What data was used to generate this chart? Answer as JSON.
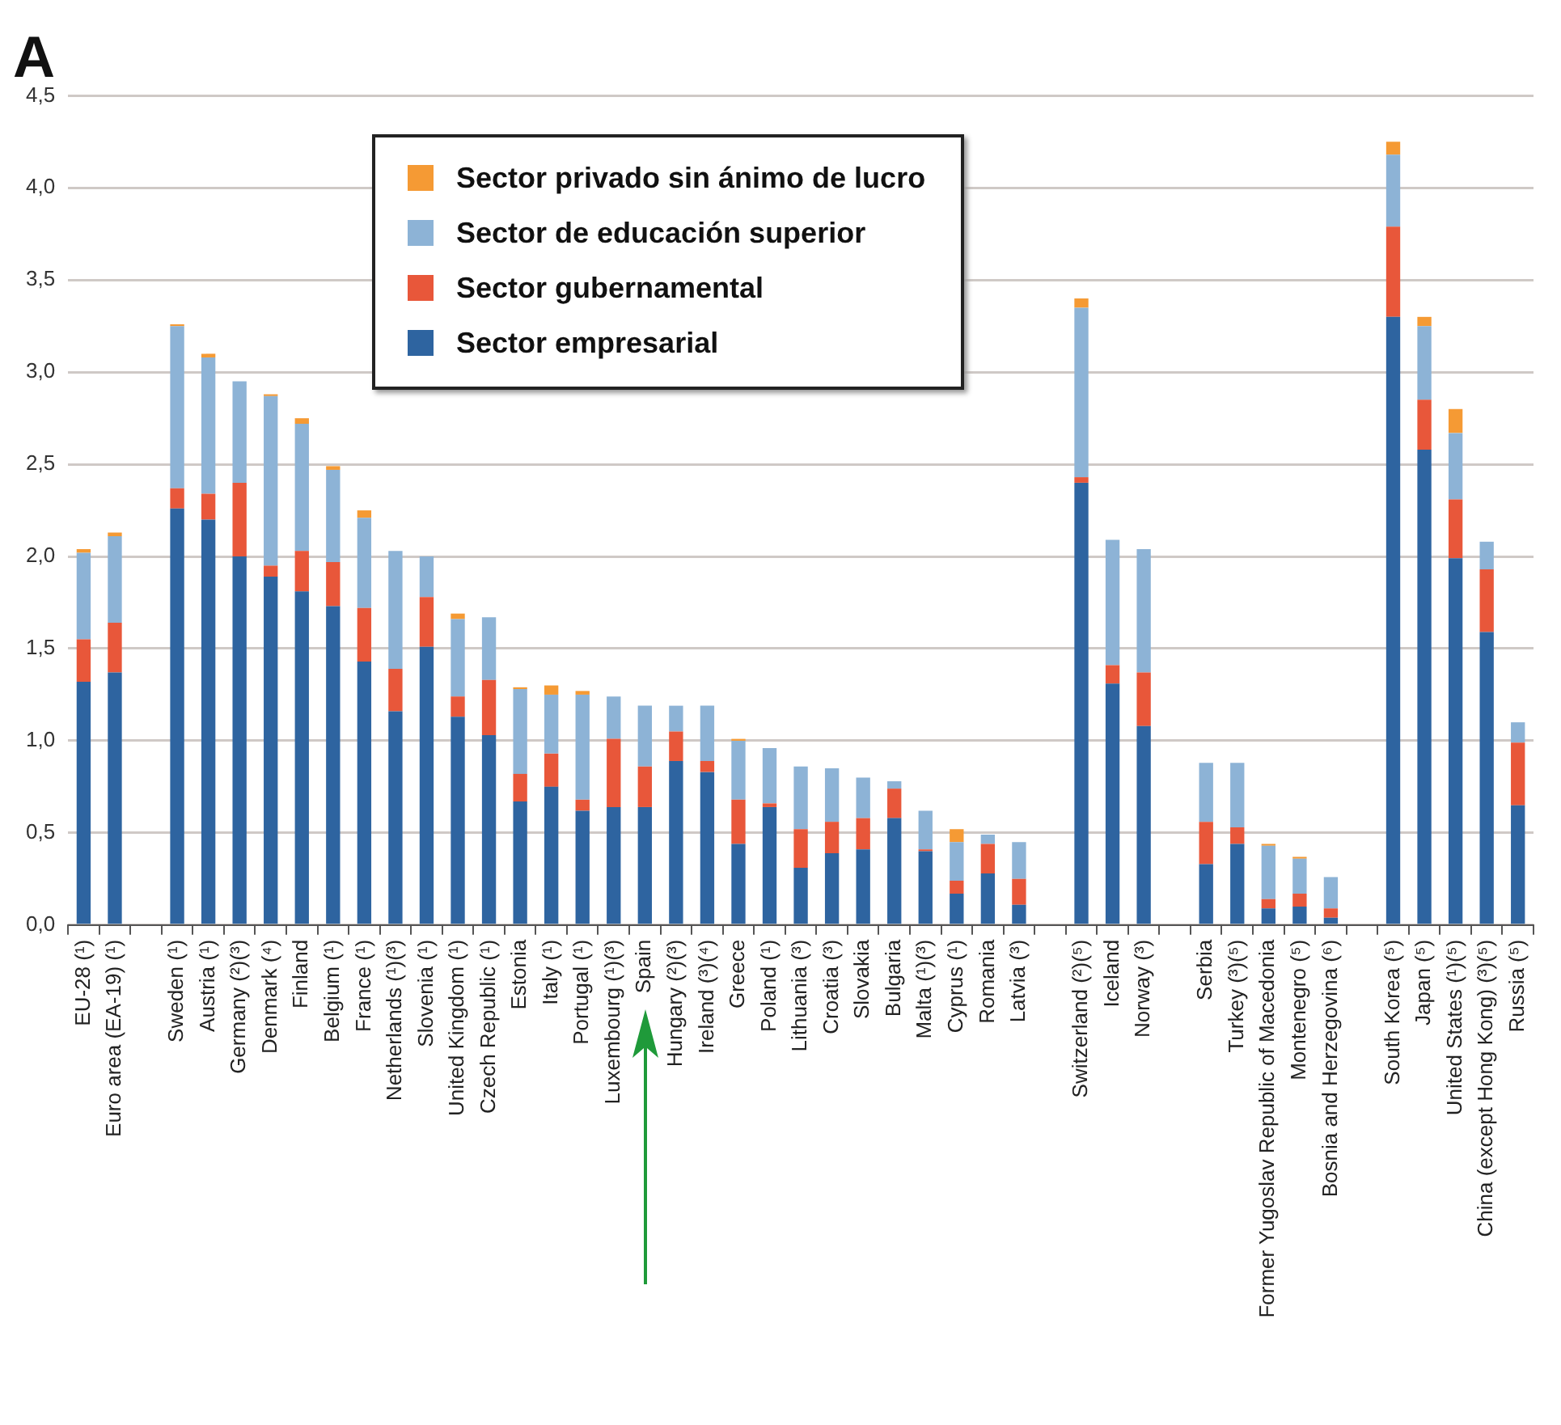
{
  "chart_data": {
    "type": "bar",
    "title": "A",
    "stacked": true,
    "grid": "y",
    "legend": "top",
    "categories": [
      "EU-28 (¹)",
      "Euro area (EA-19) (¹)",
      null,
      "Sweden (¹)",
      "Austria (¹)",
      "Germany (²)(³)",
      "Denmark (⁴)",
      "Finland",
      "Belgium (¹)",
      "France (¹)",
      "Netherlands (¹)(³)",
      "Slovenia (¹)",
      "United Kingdom (¹)",
      "Czech Republic (¹)",
      "Estonia",
      "Italy (¹)",
      "Portugal (¹)",
      "Luxembourg (¹)(³)",
      "Spain",
      "Hungary (²)(³)",
      "Ireland (³)(⁴)",
      "Greece",
      "Poland (¹)",
      "Lithuania (³)",
      "Croatia (³)",
      "Slovakia",
      "Bulgaria",
      "Malta (¹)(³)",
      "Cyprus (¹)",
      "Romania",
      "Latvia (³)",
      null,
      "Switzerland (²)(⁵)",
      "Iceland",
      "Norway (³)",
      null,
      "Serbia",
      "Turkey (³)(⁵)",
      "Former Yugoslav Republic of Macedonia",
      "Montenegro (⁵)",
      "Bosnia and Herzegovina (⁶)",
      null,
      "South Korea (⁵)",
      "Japan (⁵)",
      "United States (¹)(⁵)",
      "China (except Hong Kong) (³)(⁵)",
      "Russia (⁵)"
    ],
    "series": [
      {
        "name": "Sector empresarial",
        "color": "#2e64a0",
        "values": [
          1.32,
          1.37,
          null,
          2.26,
          2.2,
          2.0,
          1.89,
          1.81,
          1.73,
          1.43,
          1.16,
          1.51,
          1.13,
          1.03,
          0.67,
          0.75,
          0.62,
          0.64,
          0.64,
          0.89,
          0.83,
          0.44,
          0.64,
          0.31,
          0.39,
          0.41,
          0.58,
          0.4,
          0.17,
          0.28,
          0.11,
          null,
          2.4,
          1.31,
          1.08,
          null,
          0.33,
          0.44,
          0.09,
          0.1,
          0.04,
          null,
          3.3,
          2.58,
          1.99,
          1.59,
          0.65
        ]
      },
      {
        "name": "Sector gubernamental",
        "color": "#e8573a",
        "values": [
          0.23,
          0.27,
          null,
          0.11,
          0.14,
          0.4,
          0.06,
          0.22,
          0.24,
          0.29,
          0.23,
          0.27,
          0.11,
          0.3,
          0.15,
          0.18,
          0.06,
          0.37,
          0.22,
          0.16,
          0.06,
          0.24,
          0.02,
          0.21,
          0.17,
          0.17,
          0.16,
          0.01,
          0.07,
          0.16,
          0.14,
          null,
          0.03,
          0.1,
          0.29,
          null,
          0.23,
          0.09,
          0.05,
          0.07,
          0.05,
          null,
          0.49,
          0.27,
          0.32,
          0.34,
          0.34
        ]
      },
      {
        "name": "Sector de educación superior",
        "color": "#8db3d6",
        "values": [
          0.47,
          0.47,
          null,
          0.88,
          0.74,
          0.55,
          0.92,
          0.69,
          0.5,
          0.49,
          0.64,
          0.22,
          0.42,
          0.34,
          0.46,
          0.32,
          0.57,
          0.23,
          0.33,
          0.14,
          0.3,
          0.32,
          0.3,
          0.34,
          0.29,
          0.22,
          0.04,
          0.21,
          0.21,
          0.05,
          0.2,
          null,
          0.92,
          0.68,
          0.67,
          null,
          0.32,
          0.35,
          0.29,
          0.19,
          0.17,
          null,
          0.39,
          0.4,
          0.36,
          0.15,
          0.11
        ]
      },
      {
        "name": "Sector privado sin ánimo de lucro",
        "color": "#f59a34",
        "values": [
          0.02,
          0.02,
          null,
          0.01,
          0.02,
          null,
          0.01,
          0.03,
          0.02,
          0.04,
          null,
          null,
          0.03,
          null,
          0.01,
          0.05,
          0.02,
          null,
          null,
          null,
          null,
          0.01,
          null,
          null,
          null,
          null,
          null,
          null,
          0.07,
          null,
          null,
          null,
          0.05,
          null,
          null,
          null,
          null,
          null,
          0.01,
          0.01,
          null,
          null,
          0.07,
          0.05,
          0.13,
          null,
          null
        ]
      }
    ],
    "ylim": [
      0,
      4.5
    ],
    "yticks": [
      {
        "value": 0,
        "label": "0,0"
      },
      {
        "value": 0.5,
        "label": "0,5"
      },
      {
        "value": 1,
        "label": "1,0"
      },
      {
        "value": 1.5,
        "label": "1,5"
      },
      {
        "value": 2,
        "label": "2,0"
      },
      {
        "value": 2.5,
        "label": "2,5"
      },
      {
        "value": 3,
        "label": "3,0"
      },
      {
        "value": 3.5,
        "label": "3,5"
      },
      {
        "value": 4,
        "label": "4,0"
      },
      {
        "value": 4.5,
        "label": "4,5"
      }
    ]
  }
}
